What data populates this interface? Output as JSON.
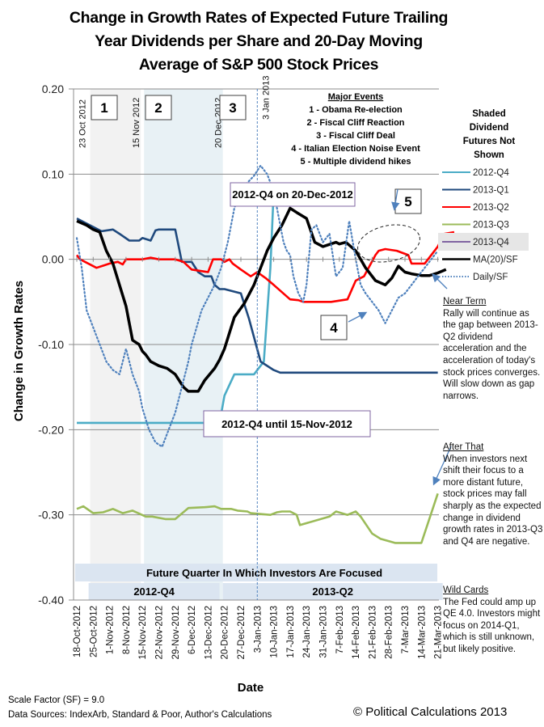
{
  "title": [
    "Change in Growth Rates of Expected Future Trailing",
    "Year Dividends per Share and 20-Day Moving",
    "Average of S&P 500 Stock Prices"
  ],
  "legend_title": [
    "Shaded",
    "Dividend",
    "Futures Not",
    "Shown"
  ],
  "notes": {
    "near_term": {
      "heading": "Near Term",
      "text": "Rally will continue as the gap between 2013-Q2 dividend acceleration and the acceleration of today's stock prices converges.  Will slow down as gap narrows."
    },
    "after_that": {
      "heading": "After That",
      "text": "When investors next shift their focus to a more distant future, stock prices may fall sharply as the expected change in dividend growth rates in 2013-Q3 and Q4 are negative."
    },
    "wild_cards": {
      "heading": "Wild Cards",
      "text": "The Fed could amp up QE 4.0.  Investors might focus on 2014-Q1, which is still unknown, but likely positive."
    }
  },
  "footer": {
    "scale_factor": "Scale Factor (SF) = 9.0",
    "sources": "Data Sources: IndexArb, Standard & Poor, Author's Calculations",
    "copyright": "© Political Calculations 2013"
  },
  "chart_data": {
    "type": "line",
    "title": "Change in Growth Rates of Expected Future Trailing Year Dividends per Share and 20-Day Moving Average of S&P 500 Stock Prices",
    "xlabel": "Date",
    "ylabel": "Change in Growth Rates",
    "ylim": [
      -0.4,
      0.2
    ],
    "yticks": [
      "0.20",
      "0.10",
      "0.00",
      "-0.10",
      "-0.20",
      "-0.30",
      "-0.40"
    ],
    "ytick_values": [
      0.2,
      0.1,
      0.0,
      -0.1,
      -0.2,
      -0.3,
      -0.4
    ],
    "xlim_weeks": [
      0,
      22
    ],
    "xticks": [
      "18-Oct-2012",
      "25-Oct-2012",
      "1-Nov-2012",
      "8-Nov-2012",
      "15-Nov-2012",
      "22-Nov-2012",
      "29-Nov-2012",
      "6-Dec-2012",
      "13-Dec-2012",
      "20-Dec-2012",
      "27-Dec-2012",
      "3-Jan-2013",
      "10-Jan-2013",
      "17-Jan-2013",
      "24-Jan-2013",
      "31-Jan-2013",
      "7-Feb-2013",
      "14-Feb-2013",
      "21-Feb-2013",
      "28-Feb-2013",
      "7-Mar-2013",
      "14-Mar-2013",
      "21-Mar-2013"
    ],
    "grid": "horizontal",
    "legend_position": "right",
    "x_unit": "weeks since 18-Oct-2012",
    "series": [
      {
        "name": "2012-Q4",
        "color": "#4bacc6",
        "style": "solid",
        "x": [
          0,
          8.7,
          9.0,
          9.6,
          10.8,
          11.4,
          11.8,
          12.0,
          12.7,
          13.0
        ],
        "y": [
          -0.192,
          -0.192,
          -0.16,
          -0.135,
          -0.135,
          -0.12,
          -0.01,
          0.08,
          0.08,
          0.085
        ]
      },
      {
        "name": "2012-Q4 (shaded, not shown)",
        "color": "#b7dde8",
        "style": "solid",
        "x": [
          9.0,
          13.0
        ],
        "y": [
          -0.192,
          -0.192
        ]
      },
      {
        "name": "2013-Q1",
        "color": "#1f497d",
        "style": "solid",
        "x": [
          0,
          0.8,
          1.5,
          2.2,
          2.6,
          3.2,
          3.8,
          4.0,
          4.5,
          4.8,
          5.0,
          5.4,
          6.0,
          6.4,
          7.0,
          7.4,
          7.8,
          8.2,
          8.4,
          8.7,
          9.0,
          10.0,
          10.5,
          11.2,
          12.0,
          12.4,
          13.0,
          14.0,
          22.0
        ],
        "y": [
          0.048,
          0.04,
          0.033,
          0.035,
          0.03,
          0.022,
          0.022,
          0.025,
          0.022,
          0.034,
          0.035,
          0.035,
          0.035,
          -0.003,
          -0.003,
          -0.015,
          -0.02,
          -0.02,
          -0.03,
          -0.035,
          -0.035,
          -0.04,
          -0.07,
          -0.12,
          -0.13,
          -0.133,
          -0.133,
          -0.133,
          -0.133
        ]
      },
      {
        "name": "2013-Q2",
        "color": "#ff0000",
        "style": "solid",
        "x": [
          0,
          0.2,
          1.2,
          2.0,
          2.5,
          2.8,
          3.0,
          4.0,
          4.5,
          5.0,
          6.0,
          6.5,
          7.0,
          8.0,
          8.3,
          8.8,
          9.0,
          9.3,
          9.5,
          10.0,
          10.6,
          11.0,
          11.5,
          12.0,
          13.0,
          13.5,
          13.8,
          14.2,
          15.2,
          15.5,
          16.5,
          17.0,
          17.5,
          18.2,
          18.4,
          18.8,
          19.5,
          20.2,
          20.4,
          21.2,
          22.0,
          22.4,
          23.0
        ],
        "y": [
          0.005,
          0.0,
          -0.01,
          -0.005,
          -0.003,
          -0.006,
          0.0,
          0.0,
          0.002,
          0.0,
          0.0,
          -0.003,
          -0.012,
          -0.015,
          0.0,
          0.0,
          -0.003,
          0.0,
          -0.005,
          -0.012,
          -0.02,
          -0.015,
          -0.022,
          -0.03,
          -0.047,
          -0.048,
          -0.05,
          -0.05,
          -0.05,
          -0.05,
          -0.047,
          -0.025,
          -0.02,
          0.005,
          0.01,
          0.012,
          0.01,
          0.005,
          -0.005,
          -0.005,
          0.015,
          0.03,
          0.032
        ]
      },
      {
        "name": "2013-Q3",
        "color": "#9bbb59",
        "style": "solid",
        "x": [
          0,
          0.4,
          1.0,
          1.6,
          2.2,
          2.8,
          3.4,
          4.2,
          4.6,
          5.4,
          6.0,
          6.8,
          7.8,
          8.4,
          8.8,
          9.4,
          9.8,
          10.4,
          10.6,
          11.8,
          12.2,
          12.5,
          13.0,
          13.4,
          13.6,
          15.4,
          15.8,
          16.5,
          17.0,
          17.3,
          18.0,
          18.5,
          19.4,
          19.8,
          20.0,
          21.0,
          22.0
        ],
        "y": [
          -0.293,
          -0.29,
          -0.298,
          -0.297,
          -0.293,
          -0.298,
          -0.295,
          -0.302,
          -0.302,
          -0.305,
          -0.305,
          -0.292,
          -0.291,
          -0.29,
          -0.293,
          -0.293,
          -0.295,
          -0.296,
          -0.298,
          -0.3,
          -0.297,
          -0.296,
          -0.296,
          -0.3,
          -0.312,
          -0.302,
          -0.296,
          -0.3,
          -0.296,
          -0.302,
          -0.322,
          -0.328,
          -0.333,
          -0.333,
          -0.333,
          -0.333,
          -0.275
        ]
      },
      {
        "name": "2013-Q4",
        "color": "#8064a2",
        "style": "solid",
        "x": [],
        "y": []
      },
      {
        "name": "MA(20)/SF",
        "color": "#000000",
        "style": "solid",
        "x": [
          0,
          0.6,
          1.0,
          1.4,
          1.8,
          2.2,
          2.6,
          3.0,
          3.4,
          3.8,
          4.0,
          4.2,
          4.5,
          5.0,
          5.5,
          6.0,
          6.5,
          6.8,
          7.0,
          7.4,
          7.8,
          8.4,
          8.7,
          9.0,
          9.6,
          10.2,
          10.8,
          11.2,
          11.6,
          12.0,
          12.5,
          13.0,
          13.4,
          14.0,
          14.5,
          15.0,
          15.8,
          16.0,
          16.4,
          17.0,
          17.6,
          18.2,
          18.8,
          19.2,
          19.6,
          20.0,
          20.4,
          21.0,
          21.5,
          22.0,
          22.5
        ],
        "y": [
          0.045,
          0.04,
          0.035,
          0.032,
          0.01,
          -0.005,
          -0.03,
          -0.055,
          -0.095,
          -0.1,
          -0.108,
          -0.112,
          -0.12,
          -0.125,
          -0.128,
          -0.135,
          -0.15,
          -0.155,
          -0.155,
          -0.155,
          -0.142,
          -0.128,
          -0.118,
          -0.105,
          -0.068,
          -0.052,
          -0.03,
          -0.01,
          0.01,
          0.025,
          0.04,
          0.06,
          0.055,
          0.048,
          0.02,
          0.015,
          0.02,
          0.018,
          0.02,
          0.01,
          -0.01,
          -0.025,
          -0.03,
          -0.022,
          -0.008,
          -0.015,
          -0.017,
          -0.019,
          -0.019,
          -0.016,
          -0.012
        ]
      },
      {
        "name": "Daily/SF",
        "color": "#4f81bd",
        "style": "dotted",
        "x": [
          0,
          0.3,
          0.6,
          1.0,
          1.4,
          1.8,
          2.2,
          2.6,
          3.0,
          3.4,
          3.8,
          4.0,
          4.4,
          4.8,
          5.2,
          5.6,
          6.0,
          6.4,
          6.8,
          7.0,
          7.3,
          7.6,
          8.0,
          8.4,
          8.8,
          9.2,
          9.6,
          10.0,
          10.4,
          10.8,
          11.2,
          11.6,
          12.0,
          12.4,
          12.6,
          12.8,
          13.0,
          13.2,
          13.5,
          13.8,
          14.0,
          14.3,
          14.6,
          15.0,
          15.4,
          15.8,
          16.2,
          16.6,
          17.0,
          17.3,
          17.6,
          18.0,
          18.4,
          18.8,
          19.2,
          19.6,
          20.0,
          20.4,
          20.8,
          21.2,
          21.6,
          22.0
        ],
        "y": [
          0.025,
          -0.01,
          -0.06,
          -0.08,
          -0.1,
          -0.12,
          -0.13,
          -0.135,
          -0.105,
          -0.135,
          -0.155,
          -0.175,
          -0.2,
          -0.215,
          -0.22,
          -0.2,
          -0.18,
          -0.15,
          -0.12,
          -0.1,
          -0.08,
          -0.06,
          -0.045,
          -0.03,
          -0.01,
          0.02,
          0.06,
          0.08,
          0.09,
          0.098,
          0.11,
          0.1,
          0.08,
          0.04,
          0.02,
          0.01,
          0.005,
          -0.02,
          -0.04,
          -0.05,
          -0.03,
          0.035,
          0.04,
          0.02,
          0.03,
          -0.02,
          -0.01,
          0.045,
          0.0,
          -0.03,
          -0.04,
          -0.05,
          -0.06,
          -0.075,
          -0.06,
          -0.045,
          -0.04,
          -0.03,
          -0.02,
          -0.01,
          0.0,
          0.01
        ]
      }
    ],
    "shaded_regions": [
      {
        "label": "1",
        "from_week": 0.72,
        "to_week": 4.0,
        "color": "#f2f2f2"
      },
      {
        "label": "2",
        "from_week": 4.0,
        "to_week": 9.0,
        "color": "#e8f1f5"
      }
    ],
    "event_lines": [
      {
        "label": "23 Oct 2012",
        "week": 0.72
      },
      {
        "label": "15 Nov 2012",
        "week": 4.0
      },
      {
        "label": "20 Dec 2012",
        "week": 9.0
      },
      {
        "label": "3 Jan 2013",
        "week": 11.0,
        "dashed": true
      }
    ],
    "event_boxes": [
      "1",
      "2",
      "3",
      "4",
      "5"
    ],
    "major_events": {
      "heading": "Major Events",
      "items": [
        "1 - Obama Re-election",
        "2 - Fiscal Cliff Reaction",
        "3 - Fiscal Cliff Deal",
        "4 - Italian Election Noise Event",
        "5 - Multiple dividend hikes"
      ]
    },
    "annotations": {
      "q4_on": "2012-Q4 on 20-Dec-2012",
      "q4_until": "2012-Q4 until 15-Nov-2012"
    },
    "focus_band": {
      "heading": "Future Quarter In Which Investors Are Focused",
      "segments": [
        {
          "label": "2012-Q4",
          "from_week": 0.72,
          "to_week": 8.7
        },
        {
          "label": "2013-Q2",
          "from_week": 8.9,
          "to_week": 22.3
        }
      ]
    },
    "legend": [
      {
        "label": "2012-Q4",
        "color": "#4bacc6",
        "style": "solid"
      },
      {
        "label": "2013-Q1",
        "color": "#1f497d",
        "style": "solid"
      },
      {
        "label": "2013-Q2",
        "color": "#ff0000",
        "style": "solid"
      },
      {
        "label": "2013-Q3",
        "color": "#9bbb59",
        "style": "solid"
      },
      {
        "label": "2013-Q4",
        "color": "#8064a2",
        "style": "solid",
        "shaded": true
      },
      {
        "label": "MA(20)/SF",
        "color": "#000000",
        "style": "solid"
      },
      {
        "label": "Daily/SF",
        "color": "#4f81bd",
        "style": "dotted"
      }
    ]
  }
}
